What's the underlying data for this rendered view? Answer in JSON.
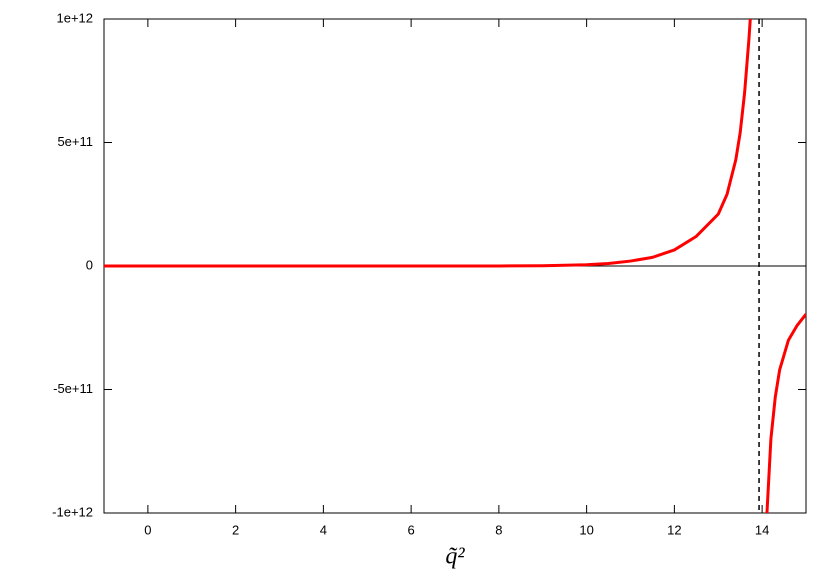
{
  "chart_data": {
    "type": "line",
    "xlabel": "q̃²",
    "x": [
      -1,
      0,
      2,
      4,
      6,
      8,
      9,
      10,
      10.5,
      11,
      11.5,
      12,
      12.5,
      13,
      13.2,
      13.4,
      13.5,
      13.6,
      13.7,
      13.73,
      13.9,
      14.11,
      14.2,
      14.3,
      14.4,
      14.6,
      14.8,
      15
    ],
    "values": [
      0,
      0,
      0,
      0,
      0,
      100000000,
      1000000000,
      5000000000,
      10000000000,
      20000000000,
      35000000000,
      65000000000,
      120000000000,
      210000000000,
      290000000000,
      430000000000,
      540000000000,
      700000000000,
      920000000000,
      1000000000000,
      null,
      -1000000000000,
      -700000000000,
      -530000000000,
      -420000000000,
      -300000000000,
      -240000000000,
      -195000000000
    ],
    "color": "#ff0000",
    "xlim": [
      -1,
      15
    ],
    "xticks": [
      0,
      2,
      4,
      6,
      8,
      10,
      12,
      14
    ],
    "ylim": [
      -1000000000000,
      1000000000000
    ],
    "yticks": [
      {
        "value": -1000000000000,
        "label": "-1e+12"
      },
      {
        "value": -500000000000,
        "label": "-5e+11"
      },
      0,
      {
        "value": 500000000000,
        "label": "5e+11"
      },
      {
        "value": 1000000000000,
        "label": "1e+12"
      }
    ],
    "vline": 13.93,
    "zero_line": true
  }
}
